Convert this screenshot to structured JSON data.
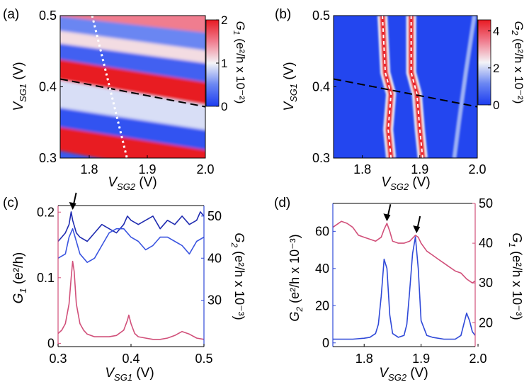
{
  "chart_data": [
    {
      "panel": "(a)",
      "type": "heatmap",
      "xlabel": "V",
      "xlabel_sub": "SG2",
      "xlabel_unit": " (V)",
      "ylabel": "V",
      "ylabel_sub": "SG1",
      "ylabel_unit": " (V)",
      "xlim": [
        1.75,
        2.0
      ],
      "ylim": [
        0.3,
        0.5
      ],
      "xticks": [
        "1.8",
        "1.9",
        "2.0"
      ],
      "xtick_values": [
        1.8,
        1.9,
        2.0
      ],
      "yticks": [
        "0.3",
        "0.4",
        "0.5"
      ],
      "ytick_values": [
        0.3,
        0.4,
        0.5
      ],
      "colorbar": {
        "label": "G",
        "label_sub": "1",
        "label_unit": " (e²/h x 10⁻²)",
        "ticks": [
          "0",
          "1",
          "2"
        ],
        "tick_values": [
          0,
          1,
          2
        ],
        "range": [
          0,
          2
        ]
      },
      "stripes": [
        {
          "y_at_x_min": 0.312,
          "y_at_x_max": 0.27,
          "level": 2.0
        },
        {
          "y_at_x_min": 0.345,
          "y_at_x_max": 0.31,
          "level": 0.15
        },
        {
          "y_at_x_min": 0.372,
          "y_at_x_max": 0.338,
          "level": 0.9
        },
        {
          "y_at_x_min": 0.411,
          "y_at_x_max": 0.373,
          "level": 2.0
        },
        {
          "y_at_x_min": 0.44,
          "y_at_x_max": 0.405,
          "level": 0.25
        },
        {
          "y_at_x_min": 0.462,
          "y_at_x_max": 0.432,
          "level": 1.1
        },
        {
          "y_at_x_min": 0.48,
          "y_at_x_max": 0.45,
          "level": 0.5
        },
        {
          "y_at_x_min": 0.5,
          "y_at_x_max": 0.475,
          "level": 1.5
        }
      ],
      "lines": [
        {
          "style": "dashed-black",
          "from": [
            1.75,
            0.411
          ],
          "to": [
            2.0,
            0.372
          ]
        },
        {
          "style": "dotted-white",
          "from": [
            1.805,
            0.5
          ],
          "to": [
            1.865,
            0.3
          ]
        }
      ]
    },
    {
      "panel": "(b)",
      "type": "heatmap",
      "xlabel": "V",
      "xlabel_sub": "SG2",
      "xlabel_unit": " (V)",
      "ylabel": "V",
      "ylabel_sub": "SG1",
      "ylabel_unit": " (V)",
      "xlim": [
        1.75,
        2.0
      ],
      "ylim": [
        0.3,
        0.5
      ],
      "xticks": [
        "1.8",
        "1.9",
        "2.0"
      ],
      "xtick_values": [
        1.8,
        1.9,
        2.0
      ],
      "yticks": [
        "0.3",
        "0.4",
        "0.5"
      ],
      "ytick_values": [
        0.3,
        0.4,
        0.5
      ],
      "colorbar": {
        "label": "G",
        "label_sub": "2",
        "label_unit": " (e²/h x 10⁻²)",
        "ticks": [
          "0",
          "2",
          "4"
        ],
        "tick_values": [
          0,
          2,
          4
        ],
        "range": [
          0,
          4.6
        ]
      },
      "ridges": [
        {
          "points": [
            [
              1.835,
              0.5
            ],
            [
              1.84,
              0.42
            ],
            [
              1.85,
              0.39
            ],
            [
              1.845,
              0.34
            ],
            [
              1.85,
              0.3
            ]
          ],
          "level": 4.5
        },
        {
          "points": [
            [
              1.885,
              0.5
            ],
            [
              1.885,
              0.42
            ],
            [
              1.895,
              0.39
            ],
            [
              1.9,
              0.34
            ],
            [
              1.905,
              0.3
            ]
          ],
          "level": 4.5
        },
        {
          "points": [
            [
              1.995,
              0.5
            ],
            [
              1.98,
              0.42
            ],
            [
              1.968,
              0.35
            ],
            [
              1.96,
              0.3
            ]
          ],
          "level": 1.5
        }
      ],
      "lines": [
        {
          "style": "dashed-black",
          "from": [
            1.75,
            0.411
          ],
          "to": [
            2.0,
            0.372
          ]
        }
      ]
    },
    {
      "panel": "(c)",
      "type": "line",
      "xlabel": "V",
      "xlabel_sub": "SG1",
      "xlabel_unit": " (V)",
      "xlim": [
        0.3,
        0.5
      ],
      "xticks": [
        "0.3",
        "0.4",
        "0.5"
      ],
      "xtick_values": [
        0.3,
        0.4,
        0.5
      ],
      "ylabel_left": "G",
      "ylabel_left_sub": "1",
      "ylabel_left_unit": " (e²/h)",
      "ylim_left": [
        -0.005,
        0.21
      ],
      "yticks_left": [
        "0",
        "0.1",
        "0.2"
      ],
      "ytick_left_values": [
        0,
        0.1,
        0.2
      ],
      "ylabel_right": "G",
      "ylabel_right_sub": "2",
      "ylabel_right_unit": " (e²/h x 10⁻³)",
      "ylim_right": [
        19,
        52.5
      ],
      "yticks_right": [
        "30",
        "40",
        "50"
      ],
      "ytick_right_values": [
        30,
        40,
        50
      ],
      "series": [
        {
          "name": "G1",
          "axis": "left",
          "color": "#d1507a",
          "x": [
            0.3,
            0.305,
            0.31,
            0.315,
            0.318,
            0.32,
            0.322,
            0.325,
            0.33,
            0.335,
            0.34,
            0.35,
            0.36,
            0.37,
            0.38,
            0.39,
            0.395,
            0.397,
            0.4,
            0.405,
            0.41,
            0.42,
            0.43,
            0.44,
            0.45,
            0.46,
            0.47,
            0.48,
            0.49,
            0.5
          ],
          "y": [
            0.015,
            0.02,
            0.03,
            0.06,
            0.1,
            0.125,
            0.11,
            0.06,
            0.03,
            0.02,
            0.014,
            0.01,
            0.01,
            0.01,
            0.012,
            0.02,
            0.035,
            0.043,
            0.03,
            0.015,
            0.01,
            0.008,
            0.006,
            0.006,
            0.008,
            0.012,
            0.018,
            0.014,
            0.008,
            0.006
          ]
        },
        {
          "name": "G2 (dark)",
          "axis": "right",
          "color": "#1f2bb0",
          "x": [
            0.3,
            0.305,
            0.31,
            0.315,
            0.318,
            0.32,
            0.325,
            0.33,
            0.34,
            0.35,
            0.36,
            0.37,
            0.38,
            0.39,
            0.395,
            0.4,
            0.41,
            0.42,
            0.43,
            0.44,
            0.45,
            0.46,
            0.47,
            0.48,
            0.49,
            0.495,
            0.5
          ],
          "y": [
            44,
            45,
            46,
            48,
            51,
            49,
            46,
            45,
            44,
            46,
            48,
            47,
            46,
            48,
            50,
            49,
            48,
            49,
            50,
            47,
            49,
            48,
            50,
            48,
            49,
            51,
            50
          ]
        },
        {
          "name": "G2 (light)",
          "axis": "right",
          "color": "#3b55e0",
          "x": [
            0.3,
            0.31,
            0.315,
            0.32,
            0.325,
            0.33,
            0.34,
            0.35,
            0.36,
            0.37,
            0.38,
            0.39,
            0.4,
            0.41,
            0.42,
            0.43,
            0.44,
            0.45,
            0.46,
            0.47,
            0.48,
            0.49,
            0.5
          ],
          "y": [
            40,
            41,
            45,
            47,
            44,
            41,
            39,
            40,
            43,
            46,
            47,
            47,
            45,
            44,
            42,
            43,
            45,
            45,
            44,
            43,
            41,
            44,
            45
          ]
        }
      ],
      "annotations": [
        {
          "type": "arrow",
          "x": 0.32,
          "axis": "right",
          "y": 51.5
        }
      ]
    },
    {
      "panel": "(d)",
      "type": "line",
      "xlabel": "V",
      "xlabel_sub": "SG2",
      "xlabel_unit": " (V)",
      "xlim": [
        1.745,
        1.995
      ],
      "xticks": [
        "1.8",
        "1.9",
        "2.0"
      ],
      "xtick_values": [
        1.8,
        1.9,
        2.0
      ],
      "ylabel_left": "G",
      "ylabel_left_sub": "2",
      "ylabel_left_unit": " (e²/h x 10⁻³)",
      "ylim_left": [
        -2,
        75
      ],
      "yticks_left": [
        "0",
        "20",
        "40",
        "60"
      ],
      "ytick_left_values": [
        0,
        20,
        40,
        60
      ],
      "ylabel_right": "G",
      "ylabel_right_sub": "1",
      "ylabel_right_unit": " (e²/h x 10⁻³)",
      "ylim_right": [
        14,
        50
      ],
      "yticks_right": [
        "20",
        "30",
        "40",
        "50"
      ],
      "ytick_right_values": [
        20,
        30,
        40,
        50
      ],
      "series": [
        {
          "name": "G1",
          "axis": "right",
          "color": "#d1507a",
          "x": [
            1.745,
            1.76,
            1.77,
            1.78,
            1.79,
            1.8,
            1.81,
            1.82,
            1.83,
            1.835,
            1.84,
            1.845,
            1.85,
            1.86,
            1.87,
            1.88,
            1.89,
            1.895,
            1.9,
            1.91,
            1.92,
            1.93,
            1.94,
            1.95,
            1.96,
            1.97,
            1.98,
            1.99,
            1.995
          ],
          "y": [
            44,
            45.5,
            45,
            44,
            42,
            41.5,
            41,
            40.5,
            41.5,
            43.5,
            45,
            43,
            40.5,
            40,
            40,
            40.5,
            42,
            41.5,
            40,
            38,
            37,
            36,
            35,
            34,
            33,
            32.5,
            31,
            30,
            30.5
          ]
        },
        {
          "name": "G2",
          "axis": "left",
          "color": "#2f49d8",
          "x": [
            1.745,
            1.76,
            1.78,
            1.8,
            1.81,
            1.82,
            1.825,
            1.83,
            1.835,
            1.84,
            1.845,
            1.85,
            1.86,
            1.87,
            1.875,
            1.88,
            1.885,
            1.89,
            1.895,
            1.9,
            1.91,
            1.92,
            1.94,
            1.96,
            1.97,
            1.975,
            1.98,
            1.985,
            1.99,
            1.995
          ],
          "y": [
            2,
            2,
            2,
            2.5,
            3,
            5,
            10,
            25,
            45,
            40,
            15,
            5,
            3,
            4,
            10,
            28,
            48,
            57,
            40,
            12,
            4,
            3,
            2,
            2,
            4,
            10,
            16,
            12,
            6,
            4
          ]
        }
      ],
      "annotations": [
        {
          "type": "arrow",
          "x": 1.84,
          "axis": "right",
          "y": 45.5
        },
        {
          "type": "arrow",
          "x": 1.892,
          "axis": "right",
          "y": 42.5
        }
      ]
    }
  ]
}
